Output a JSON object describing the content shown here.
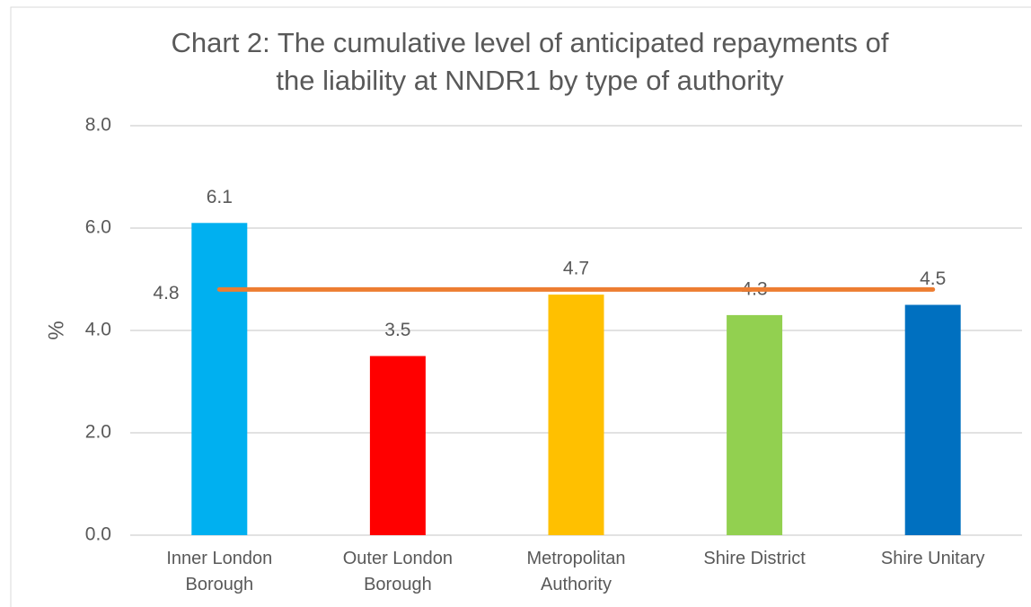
{
  "chart_data": {
    "type": "bar",
    "title": [
      "Chart 2: The cumulative level of anticipated repayments of",
      "the liability at NNDR1 by type of authority"
    ],
    "y_label": "%",
    "categories": [
      "Inner London Borough",
      "Outer London Borough",
      "Metropolitan Authority",
      "Shire District",
      "Shire Unitary"
    ],
    "values": [
      6.1,
      3.5,
      4.7,
      4.3,
      4.5
    ],
    "colors": [
      "#00b0f0",
      "#ff0000",
      "#ffc000",
      "#92d050",
      "#0070c0"
    ],
    "average": {
      "value": 4.8,
      "color": "#ed7d31"
    },
    "ylim": [
      0,
      8
    ],
    "yticks": [
      {
        "value": 0,
        "label": "0.0"
      },
      {
        "value": 2,
        "label": "2.0"
      },
      {
        "value": 4,
        "label": "4.0"
      },
      {
        "value": 6,
        "label": "6.0"
      },
      {
        "value": 8,
        "label": "8.0"
      }
    ],
    "grid": true
  }
}
